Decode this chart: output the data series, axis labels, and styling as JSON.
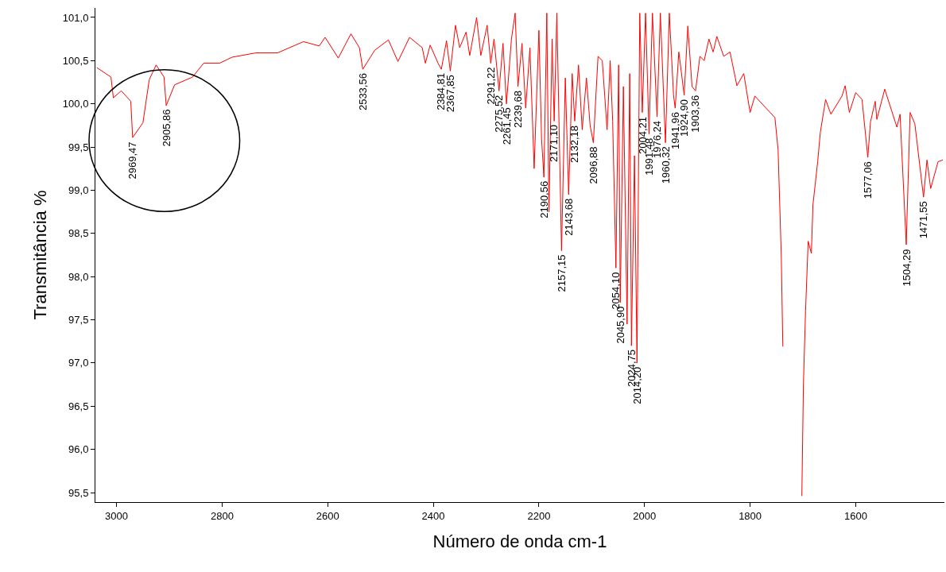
{
  "chart_data": {
    "type": "line",
    "xlabel": "Número de onda cm-1",
    "ylabel": "Transmitância %",
    "xlim": [
      3040,
      1432
    ],
    "ylim": [
      95.39,
      101.11
    ],
    "xticks": [
      3000,
      2800,
      2600,
      2400,
      2200,
      2000,
      1800,
      1600
    ],
    "yticks": [
      {
        "value": 95.5,
        "label": "95,5"
      },
      {
        "value": 96,
        "label": "96,0"
      },
      {
        "value": 96.5,
        "label": "96,5"
      },
      {
        "value": 97,
        "label": "97,0"
      },
      {
        "value": 97.5,
        "label": "97,5"
      },
      {
        "value": 98,
        "label": "98,0"
      },
      {
        "value": 98.5,
        "label": "98,5"
      },
      {
        "value": 99,
        "label": "99,0"
      },
      {
        "value": 99.5,
        "label": "99,5"
      },
      {
        "value": 100,
        "label": "100,0"
      },
      {
        "value": 100.5,
        "label": "100,5"
      },
      {
        "value": 101,
        "label": "101,0"
      }
    ],
    "marker": "none",
    "line_style": "solid",
    "series": [
      {
        "color": "#ff0000",
        "x": [
          3037.5,
          3010.5,
          3006,
          2991,
          2973,
          2969.47,
          2950,
          2938,
          2925,
          2910,
          2905.86,
          2890,
          2856,
          2835,
          2805,
          2781,
          2736,
          2695,
          2646,
          2616,
          2605,
          2580,
          2556,
          2540,
          2533.56,
          2511,
          2485,
          2467,
          2445,
          2421,
          2415,
          2406,
          2391,
          2384.81,
          2375,
          2367.85,
          2358,
          2350,
          2338,
          2331,
          2318,
          2310,
          2298,
          2291.22,
          2285,
          2275.52,
          2268,
          2261.45,
          2252,
          2245,
          2239.68,
          2232,
          2225,
          2217,
          2209,
          2200,
          2195,
          2190.56,
          2185,
          2181,
          2175,
          2171.1,
          2166,
          2157.15,
          2150,
          2143.68,
          2137,
          2132.18,
          2125,
          2118,
          2110,
          2103,
          2096.88,
          2088,
          2080,
          2070.87,
          2065,
          2060.33,
          2054.1,
          2049,
          2045.9,
          2040,
          2033,
          2028,
          2024.75,
          2019,
          2014.2,
          2009,
          2004.21,
          1998,
          1991.48,
          1985,
          1976.24,
          1970,
          1960.32,
          1953,
          1945,
          1941.96,
          1935,
          1924.9,
          1918,
          1910,
          1903.36,
          1895,
          1887,
          1878,
          1870,
          1863,
          1850,
          1838,
          1825,
          1812,
          1800,
          1791,
          1753,
          1747,
          1741,
          1738,
          1737,
          1736,
          1703,
          1702,
          1699,
          1695,
          1690,
          1684,
          1681,
          1672,
          1667,
          1657,
          1647,
          1626,
          1620,
          1612,
          1600,
          1588,
          1577.06,
          1572,
          1563,
          1560,
          1545,
          1522,
          1516,
          1504.29,
          1497,
          1488,
          1471.55,
          1465,
          1458,
          1444,
          1435
        ],
        "values": [
          100.42,
          100.31,
          100.07,
          100.15,
          100.03,
          99.61,
          99.78,
          100.28,
          100.45,
          100.31,
          99.98,
          100.22,
          100.31,
          100.47,
          100.47,
          100.54,
          100.59,
          100.59,
          100.72,
          100.67,
          100.77,
          100.53,
          100.81,
          100.65,
          100.4,
          100.62,
          100.74,
          100.49,
          100.77,
          100.65,
          100.47,
          100.68,
          100.47,
          100.4,
          100.73,
          100.38,
          100.91,
          100.65,
          100.83,
          100.56,
          101.0,
          100.56,
          100.91,
          100.47,
          100.75,
          100.15,
          100.7,
          100.0,
          100.75,
          101.05,
          100.2,
          100.7,
          99.95,
          100.65,
          99.25,
          100.85,
          99.6,
          99.15,
          101.05,
          98.75,
          100.75,
          99.8,
          101.05,
          98.3,
          100.3,
          98.95,
          100.35,
          99.8,
          100.45,
          99.7,
          100.3,
          99.75,
          99.55,
          100.55,
          100.5,
          99.7,
          100.5,
          99.8,
          98.1,
          100.45,
          97.7,
          100.2,
          97.45,
          100.35,
          97.2,
          99.4,
          97.0,
          101.05,
          99.9,
          101.05,
          99.65,
          101.05,
          99.85,
          101.05,
          99.55,
          101.05,
          100.1,
          99.95,
          100.6,
          100.1,
          100.9,
          100.2,
          100.15,
          100.55,
          100.5,
          100.75,
          100.6,
          100.78,
          100.55,
          100.6,
          100.21,
          100.35,
          99.9,
          100.09,
          99.84,
          99.47,
          98.25,
          97.19,
          null,
          null,
          null,
          95.46,
          96.76,
          97.6,
          98.41,
          98.27,
          98.83,
          99.33,
          99.67,
          100.05,
          99.88,
          100.09,
          100.21,
          99.9,
          100.13,
          100.05,
          99.38,
          99.79,
          100.03,
          99.82,
          100.17,
          99.73,
          99.88,
          98.37,
          99.9,
          99.77,
          98.92,
          99.35,
          99.02,
          99.33,
          99.35
        ]
      }
    ],
    "annotations": [
      {
        "text": "2969,47",
        "x": 2969.47,
        "y": 99.61
      },
      {
        "text": "2905,86",
        "x": 2905.86,
        "y": 99.98
      },
      {
        "text": "2533,56",
        "x": 2533.56,
        "y": 100.4
      },
      {
        "text": "2384,81",
        "x": 2384.81,
        "y": 100.4
      },
      {
        "text": "2367,85",
        "x": 2367.85,
        "y": 100.38
      },
      {
        "text": "2291,22",
        "x": 2291.22,
        "y": 100.47
      },
      {
        "text": "2275,52",
        "x": 2275.52,
        "y": 100.15
      },
      {
        "text": "2261,45",
        "x": 2261.45,
        "y": 100.0
      },
      {
        "text": "2239,68",
        "x": 2239.68,
        "y": 100.2
      },
      {
        "text": "2190,56",
        "x": 2190.56,
        "y": 99.15
      },
      {
        "text": "2171,10",
        "x": 2171.1,
        "y": 99.8
      },
      {
        "text": "2157,15",
        "x": 2157.15,
        "y": 98.3
      },
      {
        "text": "2143,68",
        "x": 2143.68,
        "y": 98.95
      },
      {
        "text": "2132,18",
        "x": 2132.18,
        "y": 99.8
      },
      {
        "text": "2096,88",
        "x": 2096.88,
        "y": 99.55
      },
      {
        "text": "2054,10",
        "x": 2054.1,
        "y": 98.1
      },
      {
        "text": "2045,90",
        "x": 2045.9,
        "y": 97.7
      },
      {
        "text": "2024,75",
        "x": 2024.75,
        "y": 97.2
      },
      {
        "text": "2014,20",
        "x": 2014.2,
        "y": 97.0
      },
      {
        "text": "2004,21",
        "x": 2004.21,
        "y": 99.9
      },
      {
        "text": "1991,48",
        "x": 1991.48,
        "y": 99.65
      },
      {
        "text": "1976,24",
        "x": 1976.24,
        "y": 99.85
      },
      {
        "text": "1960,32",
        "x": 1960.32,
        "y": 99.55
      },
      {
        "text": "1941,96",
        "x": 1941.96,
        "y": 99.95
      },
      {
        "text": "1924,90",
        "x": 1924.9,
        "y": 100.1
      },
      {
        "text": "1903,36",
        "x": 1903.36,
        "y": 100.15
      },
      {
        "text": "1577,06",
        "x": 1577.06,
        "y": 99.38
      },
      {
        "text": "1504,29",
        "x": 1504.29,
        "y": 98.37
      },
      {
        "text": "1471,55",
        "x": 1471.55,
        "y": 98.92
      }
    ]
  }
}
